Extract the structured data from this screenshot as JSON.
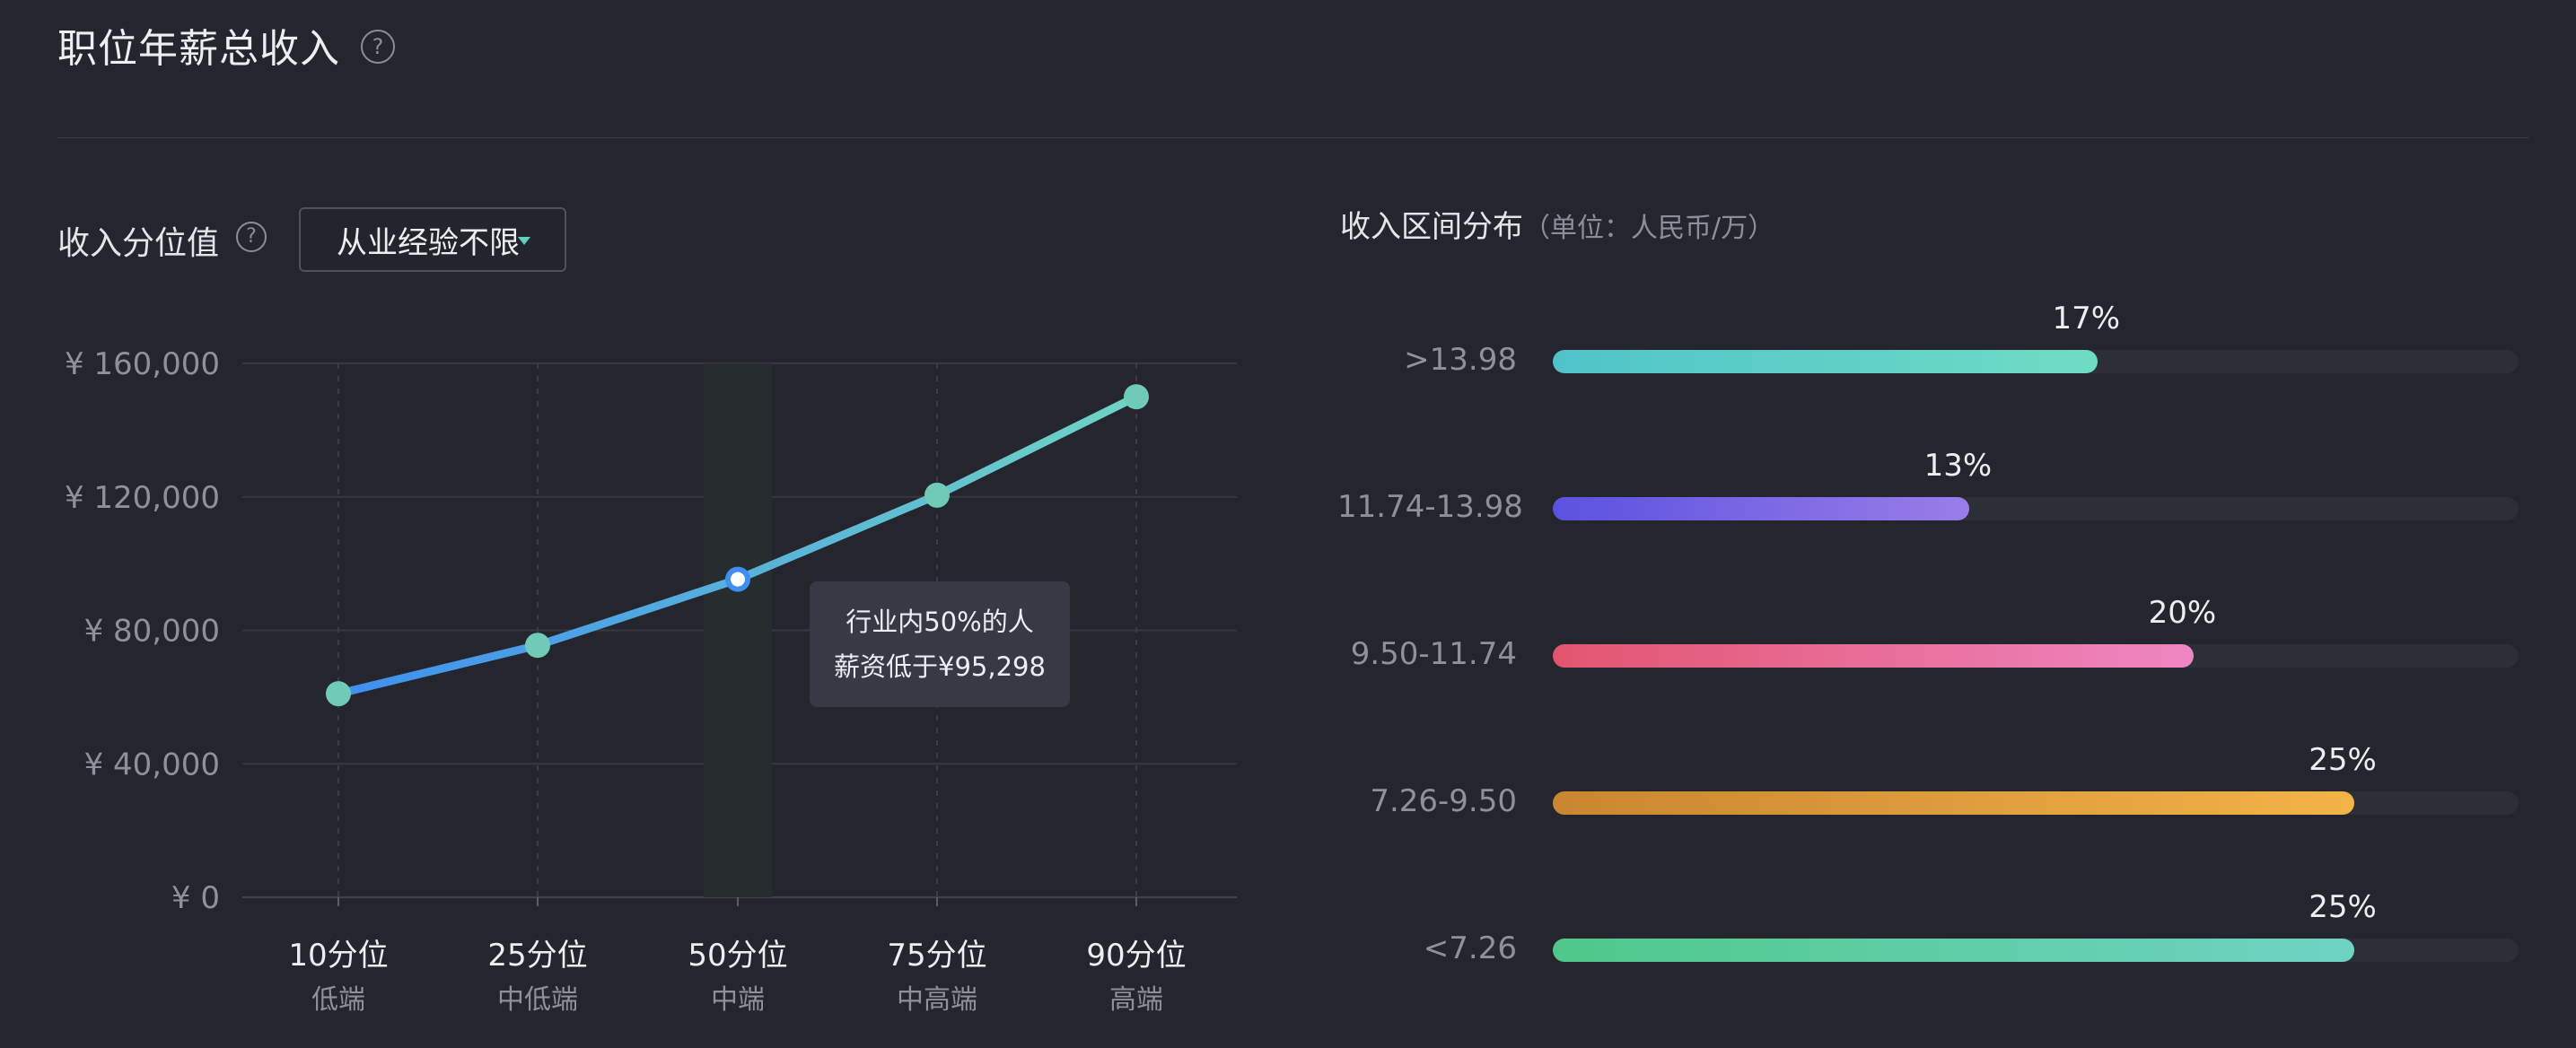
{
  "header": {
    "title": "职位年薪总收入",
    "help_glyph": "?"
  },
  "percentile_section": {
    "label": "收入分位值",
    "help_glyph": "?",
    "dropdown": {
      "selected": "从业经验不限",
      "icon": "caret-down-icon"
    }
  },
  "distribution_section": {
    "label": "收入区间分布",
    "unit": "（单位：人民币/万）"
  },
  "tooltip": {
    "line1": "行业内50%的人",
    "line2": "薪资低于¥95,298"
  },
  "colors": {
    "background": "#24252d",
    "line_start": "#3f8ff0",
    "line_end": "#6fd3c4",
    "marker": "#6fcbb8",
    "grid": "#363843",
    "highlight_band": "#272c2e"
  },
  "chart_data": [
    {
      "type": "line",
      "title": "",
      "x": [
        "10分位",
        "25分位",
        "50分位",
        "75分位",
        "90分位"
      ],
      "x_sublabels": [
        "低端",
        "中低端",
        "中端",
        "中高端",
        "高端"
      ],
      "y": [
        61000,
        75500,
        95298,
        120500,
        150000
      ],
      "ylim": [
        0,
        160000
      ],
      "yticks": [
        0,
        40000,
        80000,
        120000,
        160000
      ],
      "ytick_labels": [
        "¥ 0",
        "¥ 40,000",
        "¥ 80,000",
        "¥ 120,000",
        "¥ 160,000"
      ],
      "highlight_index": 2,
      "grid": true
    },
    {
      "type": "bar",
      "orientation": "horizontal",
      "title": "",
      "categories": [
        ">13.98",
        "11.74-13.98",
        "9.50-11.74",
        "7.26-9.50",
        "<7.26"
      ],
      "values": [
        17,
        13,
        20,
        25,
        25
      ],
      "value_labels": [
        "17%",
        "13%",
        "20%",
        "25%",
        "25%"
      ],
      "xlim": [
        0,
        30
      ],
      "bar_colors": [
        [
          "#4fc3c8",
          "#6fdcc4"
        ],
        [
          "#5b52e0",
          "#9a7de8"
        ],
        [
          "#e2556f",
          "#ee86c2"
        ],
        [
          "#c98630",
          "#f2b347"
        ],
        [
          "#4fc88a",
          "#6fd3c4"
        ]
      ]
    }
  ]
}
